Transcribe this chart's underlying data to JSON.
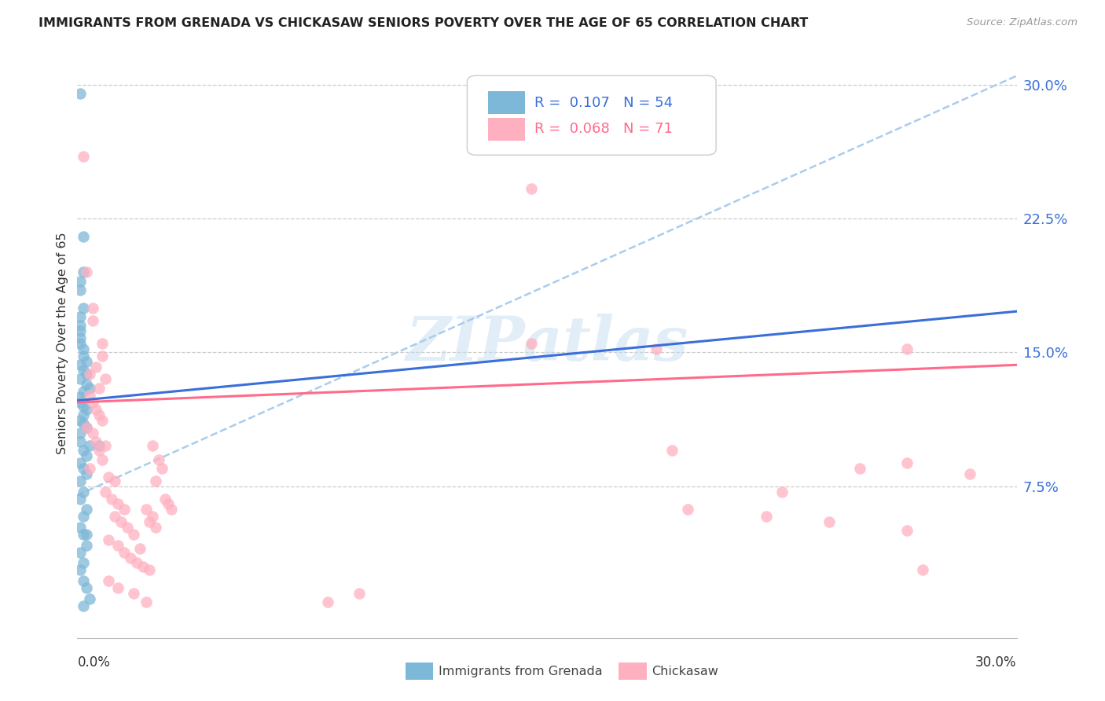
{
  "title": "IMMIGRANTS FROM GRENADA VS CHICKASAW SENIORS POVERTY OVER THE AGE OF 65 CORRELATION CHART",
  "source": "Source: ZipAtlas.com",
  "ylabel": "Seniors Poverty Over the Age of 65",
  "xlim": [
    0.0,
    0.3
  ],
  "ylim": [
    -0.01,
    0.32
  ],
  "ytick_vals": [
    0.075,
    0.15,
    0.225,
    0.3
  ],
  "ytick_labels": [
    "7.5%",
    "15.0%",
    "22.5%",
    "30.0%"
  ],
  "legend_blue_R": "0.107",
  "legend_blue_N": "54",
  "legend_pink_R": "0.068",
  "legend_pink_N": "71",
  "legend_label_blue": "Immigrants from Grenada",
  "legend_label_pink": "Chickasaw",
  "blue_dot_color": "#7EB8D8",
  "pink_dot_color": "#FFB0C0",
  "blue_line_color": "#3A6FD8",
  "pink_line_color": "#FF6B8A",
  "dashed_line_color": "#AACCEE",
  "watermark_text": "ZIPatlas",
  "watermark_color": "#C5DCF0",
  "axis_label_color": "#3A6FD8",
  "blue_trend_y": [
    0.123,
    0.173
  ],
  "pink_trend_y": [
    0.122,
    0.143
  ],
  "dashed_trend_y": [
    0.07,
    0.305
  ],
  "blue_dots_x": [
    0.001,
    0.002,
    0.002,
    0.001,
    0.001,
    0.002,
    0.001,
    0.001,
    0.001,
    0.001,
    0.001,
    0.002,
    0.002,
    0.003,
    0.001,
    0.002,
    0.003,
    0.001,
    0.003,
    0.004,
    0.002,
    0.001,
    0.001,
    0.002,
    0.003,
    0.002,
    0.001,
    0.002,
    0.003,
    0.001,
    0.001,
    0.004,
    0.002,
    0.003,
    0.001,
    0.002,
    0.003,
    0.001,
    0.002,
    0.001,
    0.003,
    0.002,
    0.001,
    0.002,
    0.003,
    0.001,
    0.002,
    0.001,
    0.002,
    0.003,
    0.004,
    0.002,
    0.003,
    0.007
  ],
  "blue_dots_y": [
    0.295,
    0.215,
    0.195,
    0.19,
    0.185,
    0.175,
    0.17,
    0.165,
    0.162,
    0.158,
    0.155,
    0.152,
    0.148,
    0.145,
    0.143,
    0.14,
    0.138,
    0.135,
    0.132,
    0.13,
    0.128,
    0.125,
    0.122,
    0.12,
    0.118,
    0.115,
    0.112,
    0.11,
    0.108,
    0.105,
    0.1,
    0.098,
    0.095,
    0.092,
    0.088,
    0.085,
    0.082,
    0.078,
    0.072,
    0.068,
    0.062,
    0.058,
    0.052,
    0.048,
    0.042,
    0.038,
    0.032,
    0.028,
    0.022,
    0.018,
    0.012,
    0.008,
    0.048,
    0.098
  ],
  "pink_dots_x": [
    0.002,
    0.003,
    0.005,
    0.005,
    0.008,
    0.008,
    0.006,
    0.004,
    0.009,
    0.007,
    0.004,
    0.005,
    0.006,
    0.007,
    0.008,
    0.003,
    0.005,
    0.006,
    0.009,
    0.007,
    0.008,
    0.004,
    0.01,
    0.012,
    0.009,
    0.011,
    0.013,
    0.015,
    0.012,
    0.014,
    0.016,
    0.018,
    0.01,
    0.013,
    0.02,
    0.015,
    0.017,
    0.019,
    0.021,
    0.023,
    0.022,
    0.024,
    0.023,
    0.025,
    0.024,
    0.026,
    0.027,
    0.025,
    0.028,
    0.029,
    0.03,
    0.022,
    0.018,
    0.013,
    0.01,
    0.145,
    0.145,
    0.185,
    0.265,
    0.19,
    0.25,
    0.195,
    0.22,
    0.24,
    0.265,
    0.265,
    0.225,
    0.27,
    0.285,
    0.08,
    0.09
  ],
  "pink_dots_y": [
    0.26,
    0.195,
    0.175,
    0.168,
    0.155,
    0.148,
    0.142,
    0.138,
    0.135,
    0.13,
    0.126,
    0.122,
    0.118,
    0.115,
    0.112,
    0.108,
    0.105,
    0.1,
    0.098,
    0.095,
    0.09,
    0.085,
    0.08,
    0.078,
    0.072,
    0.068,
    0.065,
    0.062,
    0.058,
    0.055,
    0.052,
    0.048,
    0.045,
    0.042,
    0.04,
    0.038,
    0.035,
    0.032,
    0.03,
    0.028,
    0.062,
    0.058,
    0.055,
    0.052,
    0.098,
    0.09,
    0.085,
    0.078,
    0.068,
    0.065,
    0.062,
    0.01,
    0.015,
    0.018,
    0.022,
    0.242,
    0.155,
    0.152,
    0.152,
    0.095,
    0.085,
    0.062,
    0.058,
    0.055,
    0.05,
    0.088,
    0.072,
    0.028,
    0.082,
    0.01,
    0.015
  ]
}
